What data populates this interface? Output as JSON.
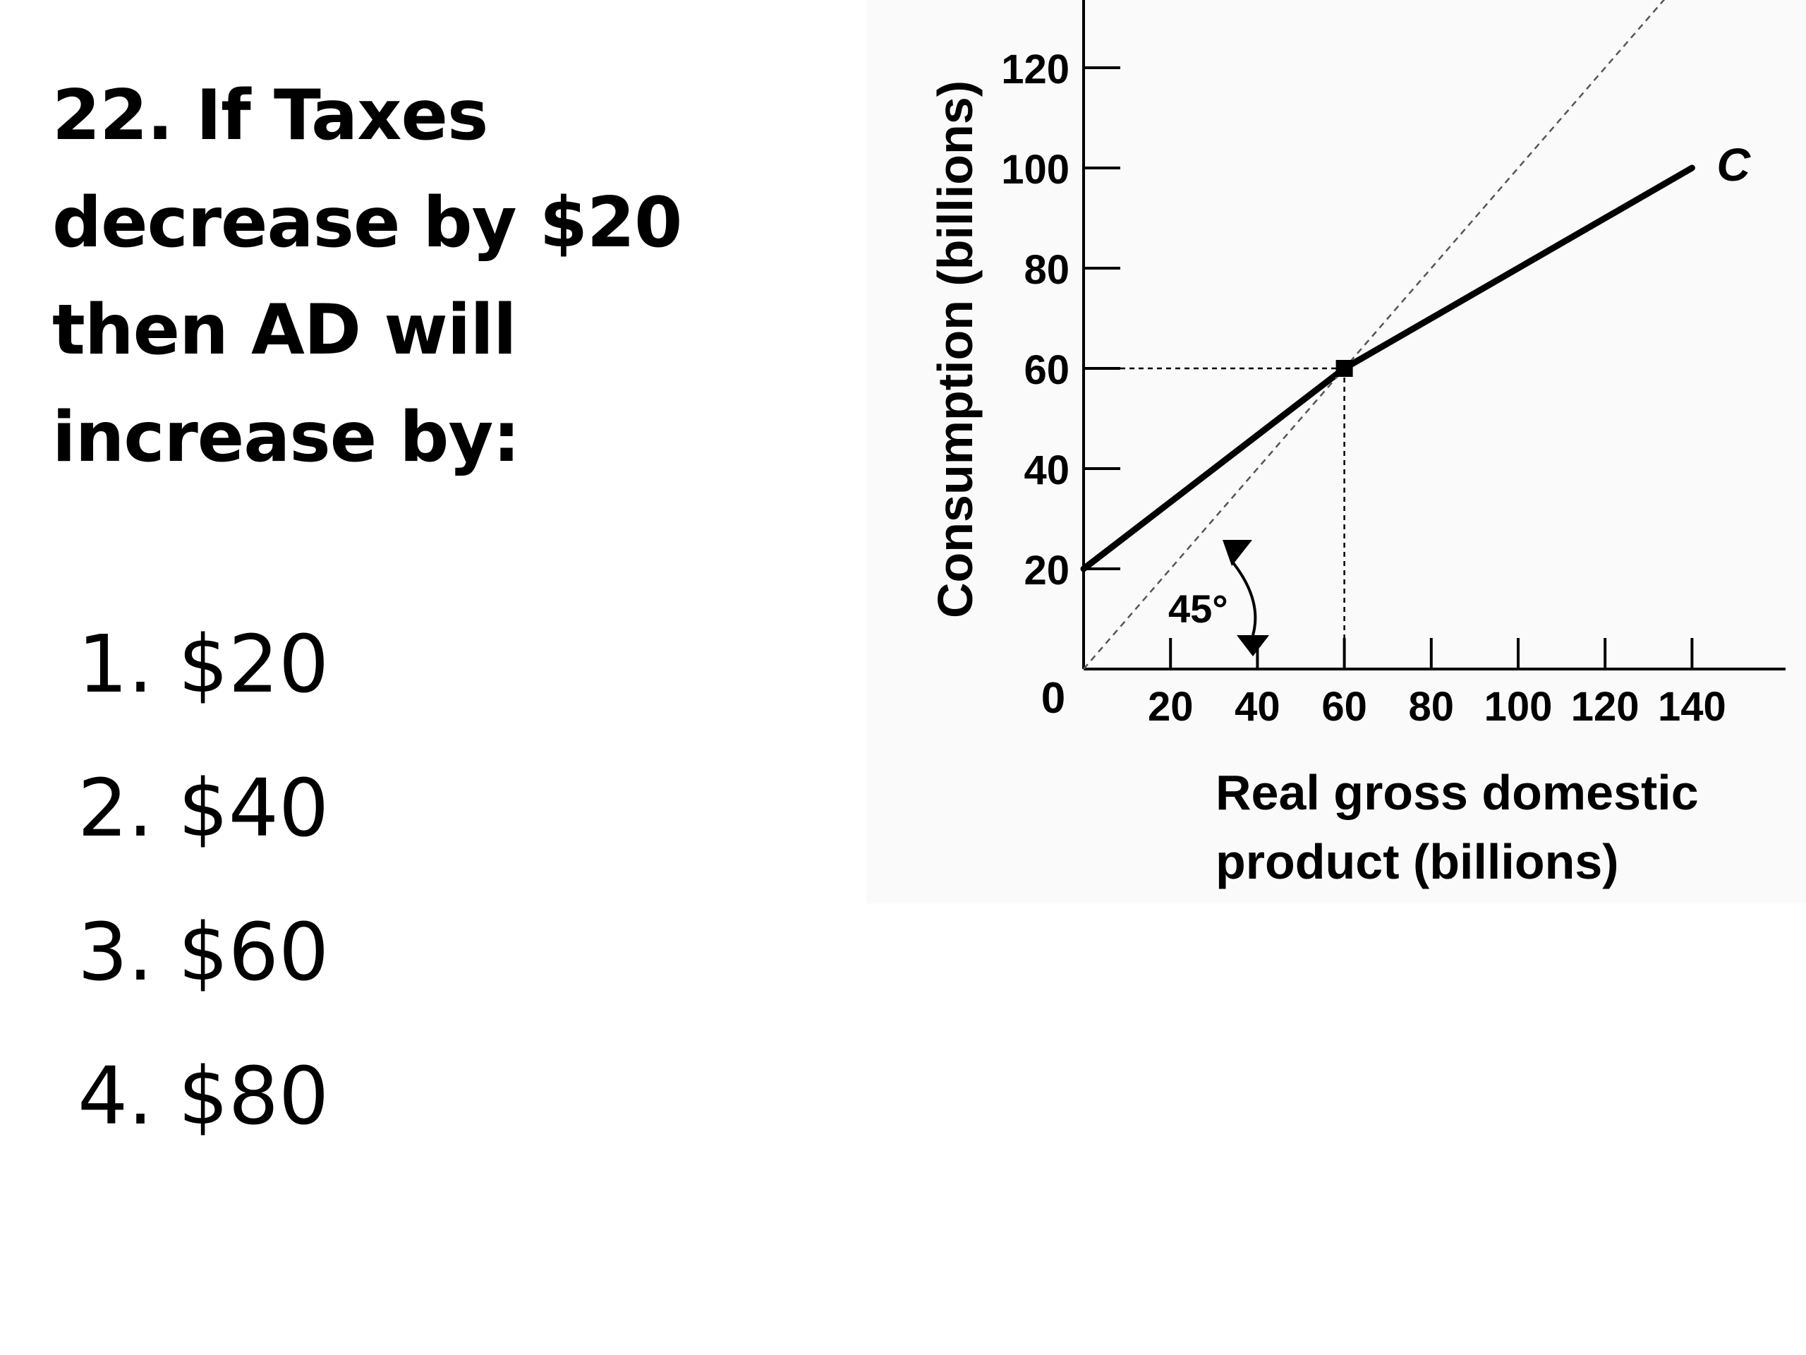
{
  "question": {
    "lines": [
      "22. If Taxes",
      "decrease by $20",
      "then AD will",
      "increase by:"
    ]
  },
  "options": [
    {
      "number": "1.",
      "value": "$20"
    },
    {
      "number": "2.",
      "value": "$40"
    },
    {
      "number": "3.",
      "value": "$60"
    },
    {
      "number": "4.",
      "value": "$80"
    }
  ],
  "chart_data": {
    "type": "line",
    "ylabel": "Consumption (billions)",
    "xlabel": "Real gross domestic product (billions)",
    "origin_label": "0",
    "x_ticks": [
      20,
      40,
      60,
      80,
      100,
      120,
      140
    ],
    "y_ticks": [
      20,
      40,
      60,
      80,
      100,
      120
    ],
    "xlim": [
      0,
      140
    ],
    "ylim": [
      0,
      120
    ],
    "grid": false,
    "series": [
      {
        "name": "C",
        "style": "solid",
        "x": [
          0,
          60,
          140
        ],
        "y": [
          20,
          60,
          100
        ]
      },
      {
        "name": "",
        "style": "dashed",
        "x": [
          0,
          140
        ],
        "y": [
          0,
          140
        ]
      }
    ],
    "annotations": {
      "angle_label": "45°",
      "intersection": {
        "x": 60,
        "y": 60
      }
    }
  }
}
